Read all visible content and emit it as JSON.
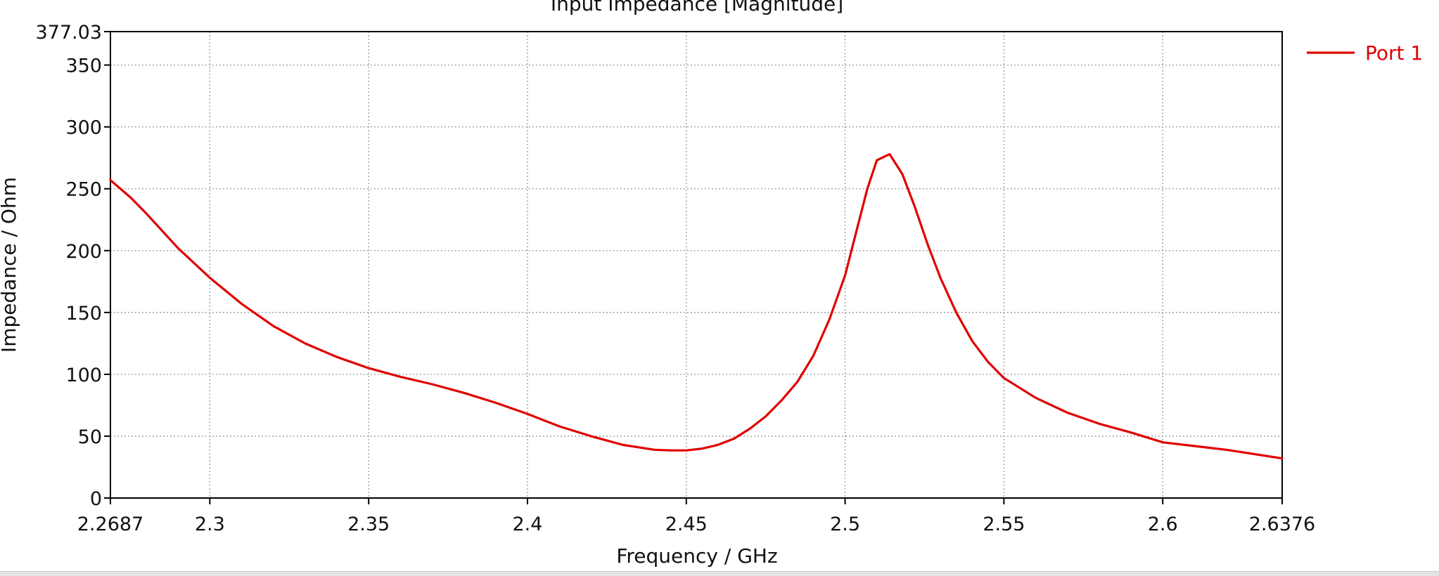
{
  "chart_data": {
    "type": "line",
    "title": "Input Impedance [Magnitude]",
    "xlabel": "Frequency / GHz",
    "ylabel": "Impedance / Ohm",
    "xlim": [
      2.2687,
      2.6376
    ],
    "ylim": [
      0,
      377.03
    ],
    "x_ticks": [
      2.2687,
      2.3,
      2.35,
      2.4,
      2.45,
      2.5,
      2.55,
      2.6,
      2.6376
    ],
    "x_tick_labels": [
      "2.2687",
      "2.3",
      "2.35",
      "2.4",
      "2.45",
      "2.5",
      "2.55",
      "2.6",
      "2.6376"
    ],
    "y_ticks": [
      0,
      50,
      100,
      150,
      200,
      250,
      300,
      350,
      377.03
    ],
    "y_tick_labels": [
      "0",
      "50",
      "100",
      "150",
      "200",
      "250",
      "300",
      "350",
      "377.03"
    ],
    "grid": true,
    "legend_position": "top-right",
    "series": [
      {
        "name": "Port 1",
        "color": "#e00000",
        "x": [
          2.2687,
          2.275,
          2.28,
          2.29,
          2.3,
          2.31,
          2.32,
          2.33,
          2.34,
          2.35,
          2.36,
          2.37,
          2.38,
          2.39,
          2.4,
          2.41,
          2.42,
          2.43,
          2.44,
          2.445,
          2.45,
          2.455,
          2.46,
          2.465,
          2.47,
          2.475,
          2.48,
          2.485,
          2.49,
          2.495,
          2.5,
          2.503,
          2.507,
          2.51,
          2.514,
          2.518,
          2.522,
          2.526,
          2.53,
          2.535,
          2.54,
          2.545,
          2.55,
          2.56,
          2.57,
          2.58,
          2.59,
          2.6,
          2.61,
          2.62,
          2.6376
        ],
        "y": [
          257,
          243,
          230,
          202,
          178,
          157,
          139,
          125,
          114,
          105,
          98,
          92,
          85,
          77,
          68,
          58,
          50,
          43,
          39,
          38.5,
          38.5,
          40,
          43,
          48,
          56,
          66,
          79,
          94,
          115,
          144,
          180,
          210,
          250,
          273,
          278,
          262,
          235,
          205,
          178,
          150,
          127,
          110,
          97,
          81,
          69,
          60,
          53,
          45,
          42,
          39,
          32
        ]
      }
    ]
  }
}
